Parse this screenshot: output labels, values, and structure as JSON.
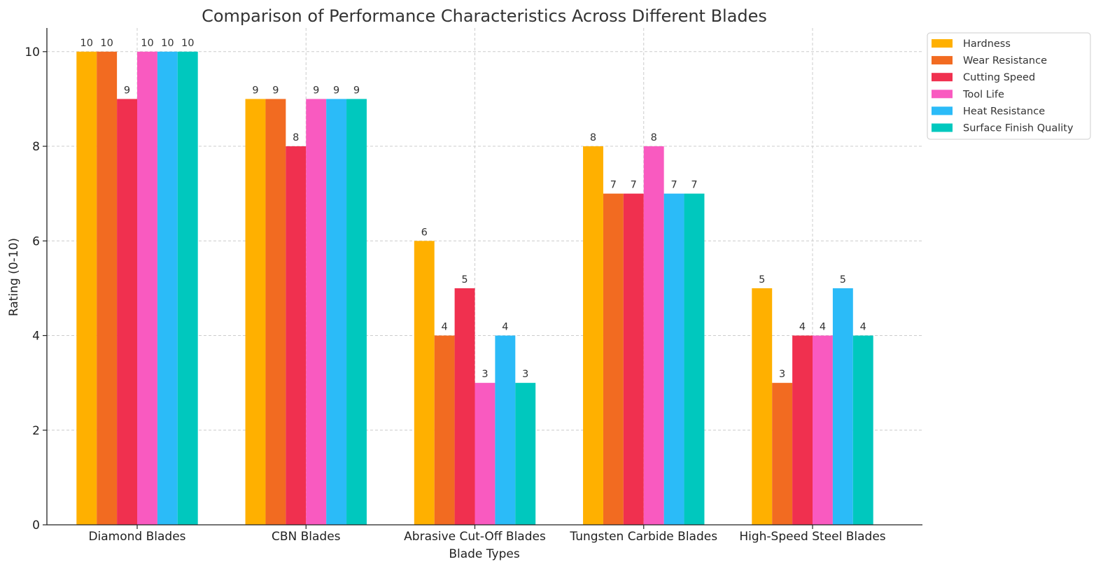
{
  "chart_data": {
    "type": "bar",
    "title": "Comparison of Performance Characteristics Across Different Blades",
    "xlabel": "Blade Types",
    "ylabel": "Rating (0-10)",
    "ylim": [
      0,
      10.5
    ],
    "yticks": [
      0,
      2,
      4,
      6,
      8,
      10
    ],
    "grid": true,
    "legend_position": "top-right",
    "categories": [
      "Diamond Blades",
      "CBN Blades",
      "Abrasive Cut-Off Blades",
      "Tungsten Carbide Blades",
      "High-Speed Steel Blades"
    ],
    "series": [
      {
        "name": "Hardness",
        "color": "#FFB000",
        "values": [
          10,
          9,
          6,
          8,
          5
        ]
      },
      {
        "name": "Wear Resistance",
        "color": "#F26B21",
        "values": [
          10,
          9,
          4,
          7,
          3
        ]
      },
      {
        "name": "Cutting Speed",
        "color": "#F0304F",
        "values": [
          9,
          8,
          5,
          7,
          4
        ]
      },
      {
        "name": "Tool Life",
        "color": "#F95AC0",
        "values": [
          10,
          9,
          3,
          8,
          4
        ]
      },
      {
        "name": "Heat Resistance",
        "color": "#2BBBF8",
        "values": [
          10,
          9,
          4,
          7,
          5
        ]
      },
      {
        "name": "Surface Finish Quality",
        "color": "#00C8BE",
        "values": [
          10,
          9,
          3,
          7,
          4
        ]
      }
    ]
  }
}
